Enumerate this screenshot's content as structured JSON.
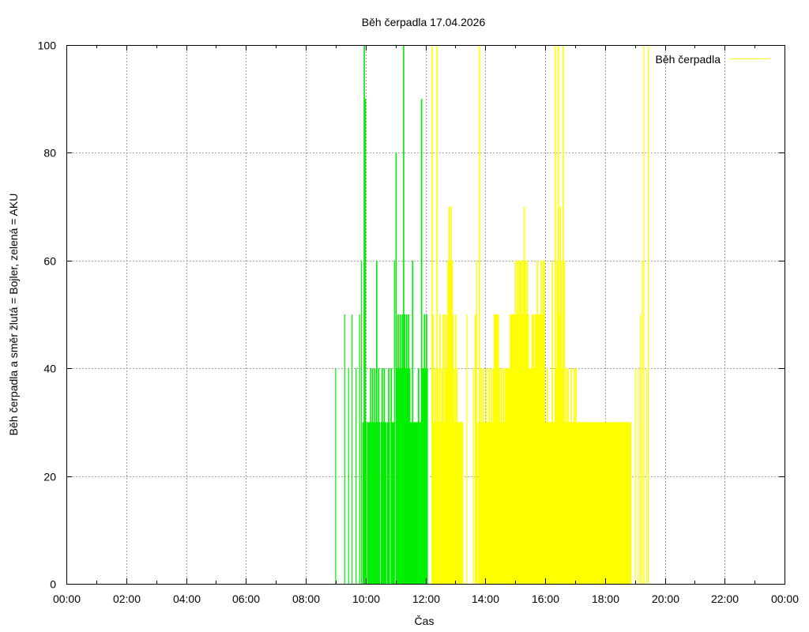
{
  "chart_data": {
    "type": "bar",
    "title": "Běh čerpadla 17.04.2026",
    "xlabel": "Čas",
    "ylabel": "Běh čerpadla a směr žlutá = Bojler, zelená = AKU",
    "xlim_hours": [
      0,
      24
    ],
    "ylim": [
      0,
      100
    ],
    "x_ticks": [
      "00:00",
      "02:00",
      "04:00",
      "06:00",
      "08:00",
      "10:00",
      "12:00",
      "14:00",
      "16:00",
      "18:00",
      "20:00",
      "22:00",
      "00:00"
    ],
    "y_ticks": [
      "0",
      "20",
      "40",
      "60",
      "80",
      "100"
    ],
    "grid": true,
    "legend": {
      "label": "Běh čerpadla",
      "placement": "top-right"
    },
    "colors": {
      "aku": "#00ee00",
      "bojler": "#ffff00"
    },
    "series": [
      {
        "id": "aku",
        "color": "green",
        "points": [
          [
            "08:59",
            40
          ],
          [
            "09:17",
            50
          ],
          [
            "09:25",
            40
          ],
          [
            "09:32",
            50
          ],
          [
            "09:40",
            40
          ],
          [
            "09:47",
            50
          ],
          [
            "09:51",
            60
          ],
          [
            "09:54",
            30
          ],
          [
            "09:56",
            100
          ],
          [
            "09:58",
            90
          ],
          [
            "10:00",
            30
          ],
          [
            "10:03",
            30
          ],
          [
            "10:05",
            30
          ],
          [
            "10:07",
            30
          ],
          [
            "10:09",
            40
          ],
          [
            "10:11",
            30
          ],
          [
            "10:13",
            40
          ],
          [
            "10:15",
            30
          ],
          [
            "10:17",
            40
          ],
          [
            "10:19",
            30
          ],
          [
            "10:21",
            60
          ],
          [
            "10:23",
            30
          ],
          [
            "10:25",
            40
          ],
          [
            "10:27",
            30
          ],
          [
            "10:30",
            30
          ],
          [
            "10:32",
            40
          ],
          [
            "10:34",
            30
          ],
          [
            "10:36",
            40
          ],
          [
            "10:38",
            30
          ],
          [
            "10:40",
            30
          ],
          [
            "10:43",
            30
          ],
          [
            "10:45",
            40
          ],
          [
            "10:47",
            30
          ],
          [
            "10:50",
            40
          ],
          [
            "10:52",
            30
          ],
          [
            "10:55",
            30
          ],
          [
            "10:57",
            60
          ],
          [
            "11:00",
            80
          ],
          [
            "11:02",
            40
          ],
          [
            "11:04",
            50
          ],
          [
            "11:06",
            40
          ],
          [
            "11:08",
            50
          ],
          [
            "11:10",
            40
          ],
          [
            "11:12",
            50
          ],
          [
            "11:14",
            40
          ],
          [
            "11:15",
            100
          ],
          [
            "11:17",
            50
          ],
          [
            "11:19",
            40
          ],
          [
            "11:21",
            50
          ],
          [
            "11:23",
            40
          ],
          [
            "11:25",
            50
          ],
          [
            "11:27",
            40
          ],
          [
            "11:29",
            30
          ],
          [
            "11:31",
            30
          ],
          [
            "11:33",
            60
          ],
          [
            "11:35",
            30
          ],
          [
            "11:37",
            30
          ],
          [
            "11:39",
            30
          ],
          [
            "11:41",
            30
          ],
          [
            "11:43",
            30
          ],
          [
            "11:45",
            40
          ],
          [
            "11:47",
            30
          ],
          [
            "11:49",
            30
          ],
          [
            "11:51",
            90
          ],
          [
            "11:53",
            40
          ],
          [
            "11:55",
            40
          ],
          [
            "11:57",
            50
          ],
          [
            "11:59",
            40
          ],
          [
            "12:01",
            50
          ],
          [
            "12:03",
            40
          ]
        ]
      },
      {
        "id": "bojler",
        "color": "yellow",
        "points": [
          [
            "12:12",
            100
          ],
          [
            "12:14",
            50
          ],
          [
            "12:16",
            30
          ],
          [
            "12:18",
            40
          ],
          [
            "12:20",
            30
          ],
          [
            "12:22",
            100
          ],
          [
            "12:24",
            40
          ],
          [
            "12:26",
            30
          ],
          [
            "12:28",
            50
          ],
          [
            "12:30",
            30
          ],
          [
            "12:32",
            40
          ],
          [
            "12:34",
            50
          ],
          [
            "12:36",
            30
          ],
          [
            "12:38",
            50
          ],
          [
            "12:40",
            40
          ],
          [
            "12:42",
            50
          ],
          [
            "12:44",
            60
          ],
          [
            "12:46",
            70
          ],
          [
            "12:48",
            60
          ],
          [
            "12:50",
            70
          ],
          [
            "12:52",
            60
          ],
          [
            "12:54",
            50
          ],
          [
            "12:56",
            40
          ],
          [
            "12:58",
            30
          ],
          [
            "13:00",
            50
          ],
          [
            "13:02",
            40
          ],
          [
            "13:04",
            30
          ],
          [
            "13:06",
            30
          ],
          [
            "13:08",
            30
          ],
          [
            "13:10",
            30
          ],
          [
            "13:12",
            30
          ],
          [
            "13:14",
            30
          ],
          [
            "13:22",
            50
          ],
          [
            "13:35",
            40
          ],
          [
            "13:39",
            50
          ],
          [
            "13:42",
            60
          ],
          [
            "13:45",
            30
          ],
          [
            "13:47",
            100
          ],
          [
            "13:49",
            30
          ],
          [
            "13:51",
            40
          ],
          [
            "13:53",
            30
          ],
          [
            "13:55",
            40
          ],
          [
            "13:57",
            30
          ],
          [
            "13:59",
            30
          ],
          [
            "14:01",
            40
          ],
          [
            "14:03",
            30
          ],
          [
            "14:05",
            30
          ],
          [
            "14:07",
            40
          ],
          [
            "14:09",
            30
          ],
          [
            "14:11",
            40
          ],
          [
            "14:13",
            30
          ],
          [
            "14:15",
            40
          ],
          [
            "14:17",
            50
          ],
          [
            "14:19",
            50
          ],
          [
            "14:21",
            50
          ],
          [
            "14:23",
            50
          ],
          [
            "14:25",
            50
          ],
          [
            "14:27",
            40
          ],
          [
            "14:29",
            30
          ],
          [
            "14:31",
            40
          ],
          [
            "14:33",
            30
          ],
          [
            "14:35",
            40
          ],
          [
            "14:37",
            30
          ],
          [
            "14:39",
            40
          ],
          [
            "14:41",
            40
          ],
          [
            "14:43",
            40
          ],
          [
            "14:45",
            40
          ],
          [
            "14:47",
            40
          ],
          [
            "14:49",
            50
          ],
          [
            "14:51",
            50
          ],
          [
            "14:53",
            50
          ],
          [
            "14:55",
            50
          ],
          [
            "14:57",
            50
          ],
          [
            "14:59",
            60
          ],
          [
            "15:01",
            50
          ],
          [
            "15:03",
            60
          ],
          [
            "15:05",
            50
          ],
          [
            "15:07",
            60
          ],
          [
            "15:09",
            60
          ],
          [
            "15:11",
            60
          ],
          [
            "15:13",
            50
          ],
          [
            "15:15",
            60
          ],
          [
            "15:17",
            70
          ],
          [
            "15:19",
            60
          ],
          [
            "15:21",
            50
          ],
          [
            "15:23",
            60
          ],
          [
            "15:25",
            50
          ],
          [
            "15:27",
            40
          ],
          [
            "15:29",
            40
          ],
          [
            "15:31",
            40
          ],
          [
            "15:33",
            50
          ],
          [
            "15:35",
            50
          ],
          [
            "15:37",
            40
          ],
          [
            "15:39",
            50
          ],
          [
            "15:41",
            50
          ],
          [
            "15:43",
            60
          ],
          [
            "15:45",
            50
          ],
          [
            "15:47",
            50
          ],
          [
            "15:49",
            50
          ],
          [
            "15:51",
            60
          ],
          [
            "15:53",
            50
          ],
          [
            "15:55",
            60
          ],
          [
            "15:57",
            60
          ],
          [
            "15:59",
            30
          ],
          [
            "16:01",
            30
          ],
          [
            "16:03",
            40
          ],
          [
            "16:05",
            30
          ],
          [
            "16:07",
            30
          ],
          [
            "16:09",
            30
          ],
          [
            "16:11",
            30
          ],
          [
            "16:13",
            60
          ],
          [
            "16:15",
            30
          ],
          [
            "16:17",
            30
          ],
          [
            "16:19",
            100
          ],
          [
            "16:21",
            40
          ],
          [
            "16:23",
            60
          ],
          [
            "16:25",
            100
          ],
          [
            "16:27",
            50
          ],
          [
            "16:29",
            70
          ],
          [
            "16:31",
            60
          ],
          [
            "16:33",
            40
          ],
          [
            "16:35",
            100
          ],
          [
            "16:37",
            60
          ],
          [
            "16:39",
            30
          ],
          [
            "16:41",
            40
          ],
          [
            "16:43",
            30
          ],
          [
            "16:45",
            40
          ],
          [
            "16:47",
            30
          ],
          [
            "16:49",
            30
          ],
          [
            "16:51",
            40
          ],
          [
            "16:53",
            30
          ],
          [
            "16:55",
            30
          ],
          [
            "16:57",
            40
          ],
          [
            "16:59",
            30
          ],
          [
            "17:01",
            40
          ],
          [
            "17:03",
            30
          ],
          [
            "17:05",
            30
          ],
          [
            "17:07",
            30
          ],
          [
            "17:09",
            30
          ],
          [
            "17:11",
            30
          ],
          [
            "17:13",
            30
          ],
          [
            "17:15",
            30
          ],
          [
            "17:17",
            30
          ],
          [
            "17:19",
            30
          ],
          [
            "17:21",
            30
          ],
          [
            "17:23",
            30
          ],
          [
            "17:25",
            30
          ],
          [
            "17:27",
            30
          ],
          [
            "17:29",
            30
          ],
          [
            "17:31",
            30
          ],
          [
            "17:33",
            30
          ],
          [
            "17:35",
            30
          ],
          [
            "17:37",
            30
          ],
          [
            "17:39",
            30
          ],
          [
            "17:41",
            30
          ],
          [
            "17:43",
            30
          ],
          [
            "17:45",
            30
          ],
          [
            "17:47",
            30
          ],
          [
            "17:49",
            30
          ],
          [
            "17:51",
            30
          ],
          [
            "17:53",
            30
          ],
          [
            "17:55",
            30
          ],
          [
            "17:57",
            30
          ],
          [
            "17:59",
            30
          ],
          [
            "18:01",
            30
          ],
          [
            "18:03",
            30
          ],
          [
            "18:05",
            30
          ],
          [
            "18:07",
            30
          ],
          [
            "18:09",
            30
          ],
          [
            "18:11",
            30
          ],
          [
            "18:13",
            30
          ],
          [
            "18:15",
            30
          ],
          [
            "18:17",
            30
          ],
          [
            "18:19",
            30
          ],
          [
            "18:21",
            30
          ],
          [
            "18:23",
            30
          ],
          [
            "18:25",
            30
          ],
          [
            "18:27",
            30
          ],
          [
            "18:29",
            30
          ],
          [
            "18:31",
            30
          ],
          [
            "18:33",
            30
          ],
          [
            "18:35",
            30
          ],
          [
            "18:37",
            30
          ],
          [
            "18:39",
            30
          ],
          [
            "18:41",
            30
          ],
          [
            "18:43",
            30
          ],
          [
            "18:45",
            30
          ],
          [
            "18:47",
            30
          ],
          [
            "18:49",
            30
          ],
          [
            "18:51",
            30
          ],
          [
            "19:00",
            40
          ],
          [
            "19:06",
            40
          ],
          [
            "19:10",
            50
          ],
          [
            "19:14",
            60
          ],
          [
            "19:17",
            100
          ],
          [
            "19:22",
            40
          ],
          [
            "19:26",
            100
          ]
        ]
      }
    ]
  }
}
